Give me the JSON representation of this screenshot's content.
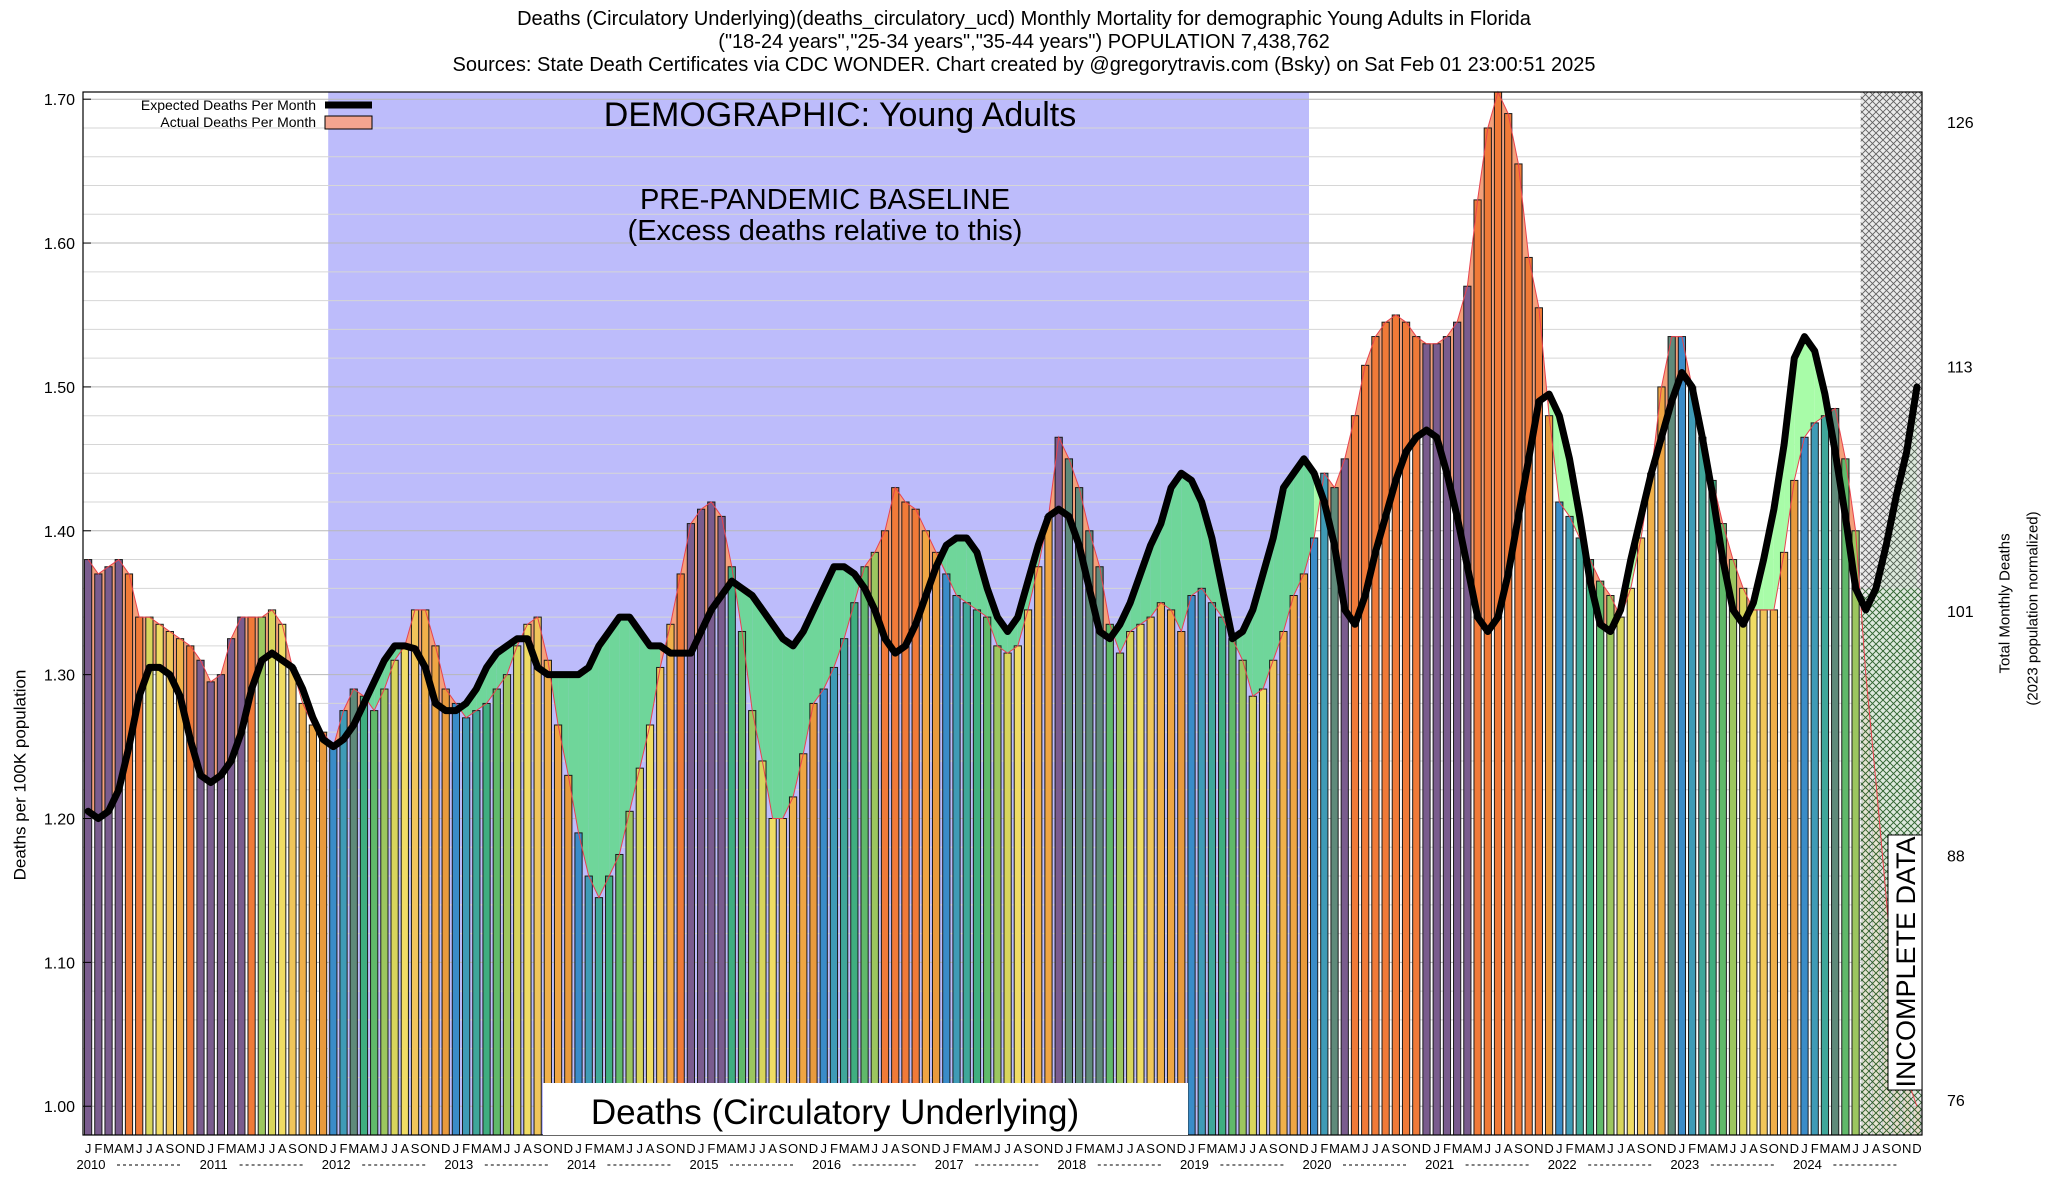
{
  "header": {
    "line1": "Deaths (Circulatory Underlying)(deaths_circulatory_ucd) Monthly Mortality for demographic Young Adults in Florida",
    "line2": "(\"18-24 years\",\"25-34 years\",\"35-44 years\") POPULATION 7,438,762",
    "line3": "Sources: State Death Certificates via CDC WONDER.            Chart created by @gregorytravis.com (Bsky) on Sat Feb 01 23:00:51 2025"
  },
  "chart_data": {
    "type": "bar",
    "ylabel_left": "Deaths per 100K population",
    "ylabel_right_1": "Total Monthly Deaths",
    "ylabel_right_2": "(2023 population normalized)",
    "ylim": [
      0.98,
      1.705
    ],
    "yticks_left": [
      "1.00",
      "1.10",
      "1.20",
      "1.30",
      "1.40",
      "1.50",
      "1.60",
      "1.70"
    ],
    "yticks_right": [
      "76",
      "88",
      "101",
      "113",
      "126"
    ],
    "month_letters": [
      "J",
      "F",
      "M",
      "A",
      "M",
      "J",
      "J",
      "A",
      "S",
      "O",
      "N",
      "D"
    ],
    "years": [
      "2010",
      "2011",
      "2012",
      "2013",
      "2014",
      "2015",
      "2016",
      "2017",
      "2018",
      "2019",
      "2020",
      "2021",
      "2022",
      "2023",
      "2024"
    ],
    "legend": [
      "Expected Deaths Per Month",
      "Actual Deaths Per Month"
    ],
    "annotations": {
      "demographic": "DEMOGRAPHIC: Young Adults",
      "baseline_1": "PRE-PANDEMIC BASELINE",
      "baseline_2": "(Excess deaths relative to this)",
      "cause": "Deaths (Circulatory Underlying)",
      "incomplete": "INCOMPLETE DATA"
    },
    "baseline_range": [
      "2012-01",
      "2019-12"
    ],
    "incomplete_from": "2024-07",
    "actual": [
      1.38,
      1.37,
      1.375,
      1.38,
      1.37,
      1.34,
      1.34,
      1.335,
      1.33,
      1.325,
      1.32,
      1.31,
      1.295,
      1.3,
      1.325,
      1.34,
      1.34,
      1.34,
      1.345,
      1.335,
      1.305,
      1.28,
      1.265,
      1.26,
      1.25,
      1.275,
      1.29,
      1.285,
      1.275,
      1.29,
      1.31,
      1.32,
      1.345,
      1.345,
      1.32,
      1.29,
      1.28,
      1.27,
      1.275,
      1.28,
      1.29,
      1.3,
      1.32,
      1.335,
      1.34,
      1.31,
      1.265,
      1.23,
      1.19,
      1.16,
      1.145,
      1.16,
      1.175,
      1.205,
      1.235,
      1.265,
      1.305,
      1.335,
      1.37,
      1.405,
      1.415,
      1.42,
      1.41,
      1.375,
      1.33,
      1.275,
      1.24,
      1.2,
      1.2,
      1.215,
      1.245,
      1.28,
      1.29,
      1.305,
      1.325,
      1.35,
      1.375,
      1.385,
      1.4,
      1.43,
      1.42,
      1.415,
      1.4,
      1.385,
      1.37,
      1.355,
      1.35,
      1.345,
      1.34,
      1.32,
      1.315,
      1.32,
      1.345,
      1.375,
      1.41,
      1.465,
      1.45,
      1.43,
      1.4,
      1.375,
      1.335,
      1.315,
      1.33,
      1.335,
      1.34,
      1.35,
      1.345,
      1.33,
      1.355,
      1.36,
      1.35,
      1.34,
      1.325,
      1.31,
      1.285,
      1.29,
      1.31,
      1.33,
      1.355,
      1.37,
      1.395,
      1.44,
      1.43,
      1.45,
      1.48,
      1.515,
      1.535,
      1.545,
      1.55,
      1.545,
      1.535,
      1.53,
      1.53,
      1.535,
      1.545,
      1.57,
      1.63,
      1.68,
      1.705,
      1.69,
      1.655,
      1.59,
      1.555,
      1.48,
      1.42,
      1.41,
      1.395,
      1.38,
      1.365,
      1.355,
      1.34,
      1.36,
      1.395,
      1.44,
      1.5,
      1.535,
      1.535,
      1.5,
      1.465,
      1.435,
      1.405,
      1.38,
      1.36,
      1.345,
      1.345,
      1.345,
      1.385,
      1.435,
      1.465,
      1.475,
      1.48,
      1.485,
      1.45,
      1.4,
      1.3,
      1.225,
      1.145,
      1.06,
      1.02,
      1.0
    ],
    "expected": [
      1.205,
      1.2,
      1.205,
      1.22,
      1.25,
      1.285,
      1.305,
      1.305,
      1.3,
      1.285,
      1.255,
      1.23,
      1.225,
      1.23,
      1.24,
      1.26,
      1.29,
      1.31,
      1.315,
      1.31,
      1.305,
      1.29,
      1.27,
      1.255,
      1.25,
      1.255,
      1.265,
      1.28,
      1.295,
      1.31,
      1.32,
      1.32,
      1.318,
      1.305,
      1.28,
      1.275,
      1.275,
      1.28,
      1.29,
      1.305,
      1.315,
      1.32,
      1.325,
      1.325,
      1.305,
      1.3,
      1.3,
      1.3,
      1.3,
      1.305,
      1.32,
      1.33,
      1.34,
      1.34,
      1.33,
      1.32,
      1.32,
      1.315,
      1.315,
      1.315,
      1.33,
      1.345,
      1.355,
      1.365,
      1.36,
      1.355,
      1.345,
      1.335,
      1.325,
      1.32,
      1.33,
      1.345,
      1.36,
      1.375,
      1.375,
      1.37,
      1.36,
      1.345,
      1.325,
      1.315,
      1.32,
      1.335,
      1.355,
      1.375,
      1.39,
      1.395,
      1.395,
      1.385,
      1.36,
      1.34,
      1.33,
      1.34,
      1.365,
      1.39,
      1.41,
      1.415,
      1.41,
      1.39,
      1.36,
      1.33,
      1.325,
      1.335,
      1.35,
      1.37,
      1.39,
      1.405,
      1.43,
      1.44,
      1.435,
      1.42,
      1.395,
      1.36,
      1.325,
      1.33,
      1.345,
      1.37,
      1.395,
      1.43,
      1.44,
      1.45,
      1.44,
      1.42,
      1.39,
      1.345,
      1.335,
      1.355,
      1.385,
      1.41,
      1.435,
      1.455,
      1.465,
      1.47,
      1.465,
      1.44,
      1.41,
      1.375,
      1.34,
      1.33,
      1.34,
      1.37,
      1.41,
      1.45,
      1.49,
      1.495,
      1.48,
      1.45,
      1.41,
      1.365,
      1.335,
      1.33,
      1.345,
      1.38,
      1.41,
      1.44,
      1.465,
      1.49,
      1.51,
      1.5,
      1.465,
      1.425,
      1.38,
      1.345,
      1.335,
      1.35,
      1.38,
      1.415,
      1.46,
      1.52,
      1.535,
      1.525,
      1.495,
      1.455,
      1.41,
      1.36,
      1.345,
      1.36,
      1.39,
      1.425,
      1.455,
      1.5
    ]
  }
}
